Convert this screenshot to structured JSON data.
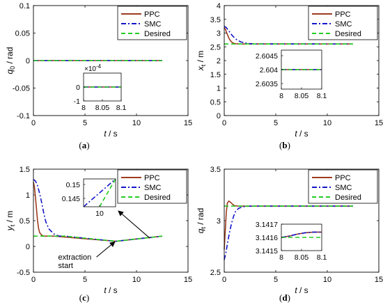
{
  "colors": {
    "ppc": "#9e3b1e",
    "smc": "#1414c8",
    "desired": "#22cc22",
    "axis": "#000000"
  },
  "legend_labels": {
    "ppc": "PPC",
    "smc": "SMC",
    "desired": "Desired"
  },
  "annotations": {
    "extraction_line1": "extraction",
    "extraction_line2": "start"
  },
  "chart_data": [
    {
      "panel": "(a)",
      "type": "line",
      "xlabel": "t / s",
      "ylabel": "q_0 / rad",
      "xlim": [
        0,
        15
      ],
      "ylim": [
        -0.1,
        0.1
      ],
      "xticks": [
        0,
        5,
        10,
        15
      ],
      "yticks": [
        -0.1,
        -0.05,
        0,
        0.05,
        0.1
      ],
      "legend": "top-right",
      "series": [
        {
          "name": "PPC",
          "style": "solid",
          "x": [
            0,
            12.5
          ],
          "y": [
            0,
            0
          ]
        },
        {
          "name": "SMC",
          "style": "dashdot",
          "x": [
            0,
            12.5
          ],
          "y": [
            0,
            0
          ]
        },
        {
          "name": "Desired",
          "style": "dashed",
          "x": [
            0,
            12.5
          ],
          "y": [
            0,
            0
          ]
        }
      ],
      "inset": {
        "xlim": [
          8,
          8.1
        ],
        "ylim": [
          -1,
          1
        ],
        "xticks": [
          8,
          8.05,
          8.1
        ],
        "yticks": [
          -1,
          0
        ],
        "yexponent_label": "×10",
        "yexponent": "-4",
        "series": [
          {
            "name": "PPC",
            "x": [
              8,
              8.1
            ],
            "y": [
              0,
              0
            ]
          },
          {
            "name": "SMC",
            "x": [
              8,
              8.1
            ],
            "y": [
              0,
              0
            ]
          },
          {
            "name": "Desired",
            "x": [
              8,
              8.1
            ],
            "y": [
              0,
              0
            ]
          }
        ]
      }
    },
    {
      "panel": "(b)",
      "type": "line",
      "xlabel": "t / s",
      "ylabel": "x_t / m",
      "xlim": [
        0,
        15
      ],
      "ylim": [
        0,
        4
      ],
      "xticks": [
        0,
        5,
        10,
        15
      ],
      "yticks": [
        0,
        0.5,
        1,
        1.5,
        2,
        2.5,
        3,
        3.5,
        4
      ],
      "legend": "top-right",
      "series": [
        {
          "name": "PPC",
          "style": "solid",
          "x": [
            0,
            0.1,
            0.3,
            0.5,
            0.7,
            0.9,
            1.2,
            1.6,
            2,
            12.5
          ],
          "y": [
            3.2,
            3.15,
            2.95,
            2.78,
            2.68,
            2.63,
            2.608,
            2.604,
            2.604,
            2.604
          ]
        },
        {
          "name": "SMC",
          "style": "dashdot",
          "x": [
            0,
            0.2,
            0.5,
            0.8,
            1.2,
            1.6,
            2,
            2.5,
            3,
            12.5
          ],
          "y": [
            3.25,
            3.2,
            3.05,
            2.9,
            2.76,
            2.68,
            2.64,
            2.615,
            2.606,
            2.604
          ]
        },
        {
          "name": "Desired",
          "style": "dashed",
          "x": [
            0,
            12.5
          ],
          "y": [
            2.604,
            2.604
          ]
        }
      ],
      "inset": {
        "xlim": [
          8,
          8.1
        ],
        "ylim": [
          2.6033,
          2.6047
        ],
        "xticks": [
          8,
          8.05,
          8.1
        ],
        "yticks": [
          2.6035,
          2.604,
          2.6045
        ],
        "series": [
          {
            "name": "PPC",
            "x": [
              8,
              8.1
            ],
            "y": [
              2.604,
              2.604
            ]
          },
          {
            "name": "SMC",
            "x": [
              8,
              8.1
            ],
            "y": [
              2.604,
              2.604
            ]
          },
          {
            "name": "Desired",
            "x": [
              8,
              8.1
            ],
            "y": [
              2.604,
              2.604
            ]
          }
        ]
      }
    },
    {
      "panel": "(c)",
      "type": "line",
      "xlabel": "t / s",
      "ylabel": "y_t / m",
      "xlim": [
        0,
        15
      ],
      "ylim": [
        -0.5,
        1.5
      ],
      "xticks": [
        0,
        5,
        10,
        15
      ],
      "yticks": [
        -0.5,
        0,
        0.5,
        1,
        1.5
      ],
      "legend": "top-right",
      "series": [
        {
          "name": "PPC",
          "style": "solid",
          "x": [
            0,
            0.1,
            0.2,
            0.3,
            0.4,
            0.5,
            0.6,
            0.8,
            1,
            1.3,
            1.6,
            2,
            8,
            12.5
          ],
          "y": [
            1.25,
            1.15,
            0.95,
            0.72,
            0.5,
            0.35,
            0.27,
            0.22,
            0.2,
            0.2,
            0.2,
            0.2,
            0.1,
            0.2
          ]
        },
        {
          "name": "SMC",
          "style": "dashdot",
          "x": [
            0,
            0.2,
            0.4,
            0.6,
            0.8,
            1,
            1.2,
            1.5,
            2,
            2.5,
            3,
            8,
            12.5
          ],
          "y": [
            1.3,
            1.27,
            1.18,
            1.03,
            0.85,
            0.65,
            0.48,
            0.34,
            0.24,
            0.2,
            0.2,
            0.1,
            0.2
          ]
        },
        {
          "name": "Desired",
          "style": "dashed",
          "x": [
            0,
            3,
            8,
            12.5
          ],
          "y": [
            0.2,
            0.2,
            0.1,
            0.2
          ]
        }
      ],
      "inset": {
        "xlim": [
          9.5,
          10.5
        ],
        "ylim": [
          0.142,
          0.152
        ],
        "xticks": [
          10
        ],
        "yticks": [
          0.145,
          0.15
        ],
        "series": [
          {
            "name": "SMC",
            "x": [
              9.5,
              10.5
            ],
            "y": [
              0.142,
              0.152
            ]
          },
          {
            "name": "Desired",
            "x": [
              10,
              10.5
            ],
            "y": [
              0.142,
              0.152
            ]
          }
        ]
      }
    },
    {
      "panel": "(d)",
      "type": "line",
      "xlabel": "t / s",
      "ylabel": "q_t / rad",
      "xlim": [
        0,
        15
      ],
      "ylim": [
        2.5,
        3.5
      ],
      "xticks": [
        0,
        5,
        10,
        15
      ],
      "yticks": [
        2.5,
        3,
        3.5
      ],
      "legend": "top-right",
      "series": [
        {
          "name": "PPC",
          "style": "solid",
          "x": [
            0,
            0.1,
            0.2,
            0.3,
            0.45,
            0.6,
            0.8,
            1,
            1.3,
            1.6,
            2,
            12.5
          ],
          "y": [
            2.72,
            2.9,
            3.08,
            3.17,
            3.19,
            3.18,
            3.16,
            3.145,
            3.142,
            3.1416,
            3.1416,
            3.1416
          ]
        },
        {
          "name": "SMC",
          "style": "dashdot",
          "x": [
            0,
            0.15,
            0.3,
            0.5,
            0.7,
            0.9,
            1.1,
            1.4,
            1.8,
            2.2,
            3,
            12.5
          ],
          "y": [
            2.62,
            2.68,
            2.77,
            2.88,
            2.97,
            3.04,
            3.09,
            3.12,
            3.135,
            3.14,
            3.1416,
            3.1416
          ]
        },
        {
          "name": "Desired",
          "style": "dashed",
          "x": [
            0,
            12.5
          ],
          "y": [
            3.1416,
            3.1416
          ]
        }
      ],
      "inset": {
        "xlim": [
          8,
          8.1
        ],
        "ylim": [
          3.1415,
          3.1417
        ],
        "xticks": [
          8,
          8.05,
          8.1
        ],
        "yticks": [
          3.1415,
          3.1416,
          3.1417
        ],
        "series": [
          {
            "name": "PPC",
            "x": [
              8,
              8.02,
              8.04,
              8.06,
              8.08,
              8.1
            ],
            "y": [
              3.1416,
              3.14161,
              3.141625,
              3.141635,
              3.14164,
              3.14164
            ]
          },
          {
            "name": "SMC",
            "x": [
              8,
              8.02,
              8.04,
              8.06,
              8.08,
              8.1
            ],
            "y": [
              3.1416,
              3.14161,
              3.141625,
              3.141635,
              3.14164,
              3.14164
            ]
          },
          {
            "name": "Desired",
            "x": [
              8,
              8.1
            ],
            "y": [
              3.1416,
              3.1416
            ]
          }
        ]
      }
    }
  ]
}
